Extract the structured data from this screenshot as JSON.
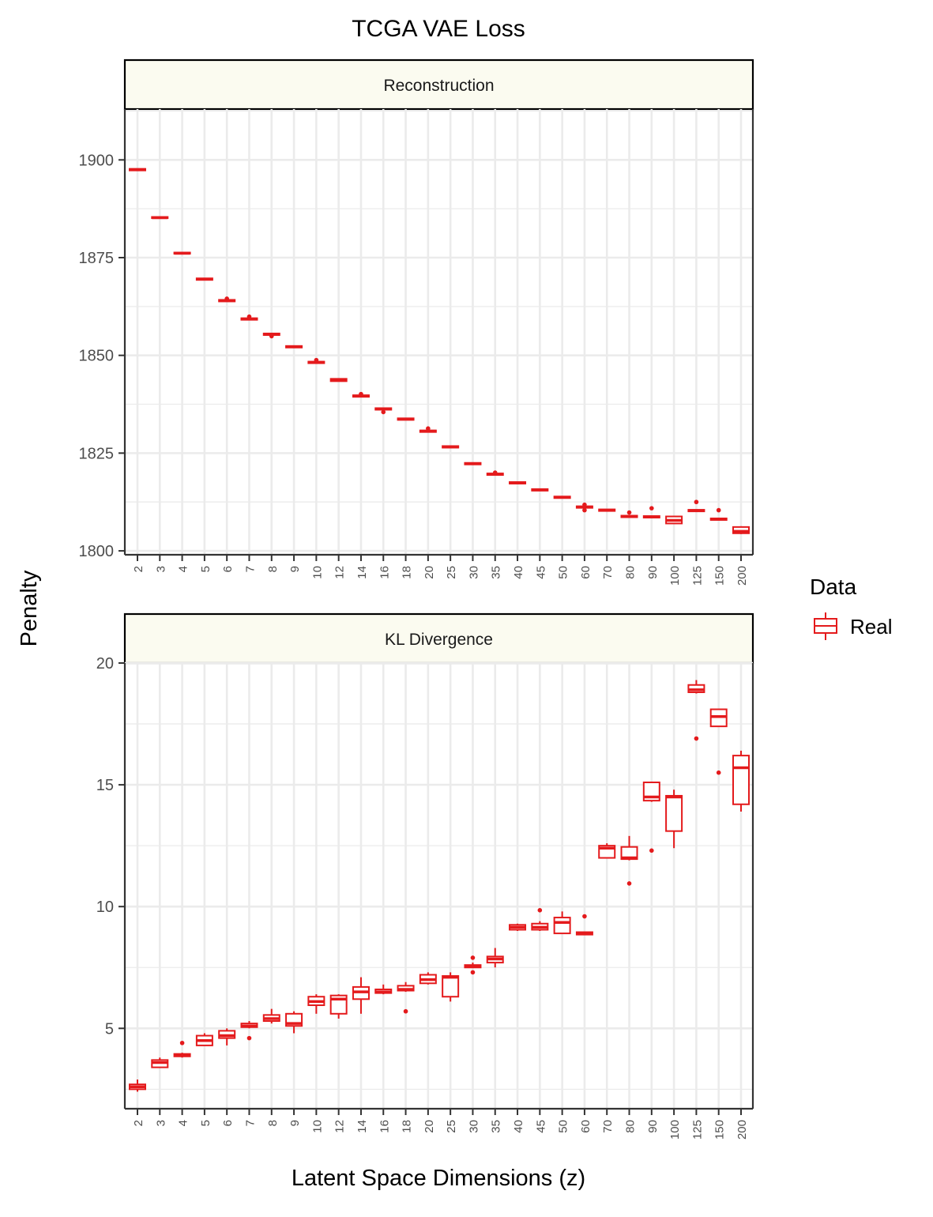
{
  "title": "TCGA VAE Loss",
  "xlabel": "Latent Space Dimensions (z)",
  "ylabel": "Penalty",
  "legend": {
    "title": "Data",
    "entries": [
      "Real"
    ],
    "position": "right"
  },
  "colors": {
    "series": "#e41a1c",
    "strip_fill": "#fbfbf0",
    "grid": "#ebebeb",
    "axis": "#333333"
  },
  "chart_data": [
    {
      "type": "box",
      "panel": "Reconstruction",
      "series_name": "Real",
      "categories": [
        "2",
        "3",
        "4",
        "5",
        "6",
        "7",
        "8",
        "9",
        "10",
        "12",
        "14",
        "16",
        "18",
        "20",
        "25",
        "30",
        "35",
        "40",
        "45",
        "50",
        "60",
        "70",
        "80",
        "90",
        "100",
        "125",
        "150",
        "200"
      ],
      "ylim": [
        1799,
        1913
      ],
      "yticks": [
        1800,
        1825,
        1850,
        1875,
        1900
      ],
      "grid": true,
      "boxes": [
        {
          "x": "2",
          "min": 1897.3,
          "q1": 1897.3,
          "median": 1897.5,
          "q3": 1897.7,
          "max": 1897.7,
          "outliers": []
        },
        {
          "x": "3",
          "min": 1885.1,
          "q1": 1885.1,
          "median": 1885.2,
          "q3": 1885.4,
          "max": 1885.4,
          "outliers": []
        },
        {
          "x": "4",
          "min": 1876.0,
          "q1": 1876.0,
          "median": 1876.1,
          "q3": 1876.3,
          "max": 1876.3,
          "outliers": []
        },
        {
          "x": "5",
          "min": 1869.3,
          "q1": 1869.3,
          "median": 1869.5,
          "q3": 1869.7,
          "max": 1869.7,
          "outliers": []
        },
        {
          "x": "6",
          "min": 1863.8,
          "q1": 1863.8,
          "median": 1864.0,
          "q3": 1864.2,
          "max": 1864.2,
          "outliers": [
            1864.5
          ]
        },
        {
          "x": "7",
          "min": 1859.1,
          "q1": 1859.1,
          "median": 1859.3,
          "q3": 1859.5,
          "max": 1859.5,
          "outliers": [
            1859.9
          ]
        },
        {
          "x": "8",
          "min": 1855.2,
          "q1": 1855.2,
          "median": 1855.4,
          "q3": 1855.6,
          "max": 1855.6,
          "outliers": [
            1854.9
          ]
        },
        {
          "x": "9",
          "min": 1852.0,
          "q1": 1852.0,
          "median": 1852.2,
          "q3": 1852.4,
          "max": 1852.4,
          "outliers": []
        },
        {
          "x": "10",
          "min": 1848.0,
          "q1": 1848.0,
          "median": 1848.2,
          "q3": 1848.4,
          "max": 1848.4,
          "outliers": [
            1848.8
          ]
        },
        {
          "x": "12",
          "min": 1843.4,
          "q1": 1843.4,
          "median": 1843.7,
          "q3": 1844.0,
          "max": 1844.0,
          "outliers": []
        },
        {
          "x": "14",
          "min": 1839.4,
          "q1": 1839.4,
          "median": 1839.6,
          "q3": 1839.8,
          "max": 1839.8,
          "outliers": [
            1840.1
          ]
        },
        {
          "x": "16",
          "min": 1836.1,
          "q1": 1836.1,
          "median": 1836.3,
          "q3": 1836.5,
          "max": 1836.5,
          "outliers": [
            1835.5
          ]
        },
        {
          "x": "18",
          "min": 1833.5,
          "q1": 1833.5,
          "median": 1833.7,
          "q3": 1833.9,
          "max": 1833.9,
          "outliers": []
        },
        {
          "x": "20",
          "min": 1830.4,
          "q1": 1830.4,
          "median": 1830.6,
          "q3": 1830.8,
          "max": 1830.8,
          "outliers": [
            1831.3
          ]
        },
        {
          "x": "25",
          "min": 1826.4,
          "q1": 1826.4,
          "median": 1826.6,
          "q3": 1826.8,
          "max": 1826.8,
          "outliers": []
        },
        {
          "x": "30",
          "min": 1822.1,
          "q1": 1822.1,
          "median": 1822.3,
          "q3": 1822.5,
          "max": 1822.5,
          "outliers": []
        },
        {
          "x": "35",
          "min": 1819.4,
          "q1": 1819.4,
          "median": 1819.6,
          "q3": 1819.8,
          "max": 1819.8,
          "outliers": [
            1820.0
          ]
        },
        {
          "x": "40",
          "min": 1817.2,
          "q1": 1817.2,
          "median": 1817.4,
          "q3": 1817.6,
          "max": 1817.6,
          "outliers": []
        },
        {
          "x": "45",
          "min": 1815.4,
          "q1": 1815.4,
          "median": 1815.6,
          "q3": 1815.8,
          "max": 1815.8,
          "outliers": []
        },
        {
          "x": "50",
          "min": 1813.5,
          "q1": 1813.5,
          "median": 1813.7,
          "q3": 1813.9,
          "max": 1813.9,
          "outliers": []
        },
        {
          "x": "60",
          "min": 1811.0,
          "q1": 1811.0,
          "median": 1811.2,
          "q3": 1811.4,
          "max": 1811.4,
          "outliers": [
            1810.4,
            1811.8
          ]
        },
        {
          "x": "70",
          "min": 1810.2,
          "q1": 1810.2,
          "median": 1810.4,
          "q3": 1810.6,
          "max": 1810.6,
          "outliers": []
        },
        {
          "x": "80",
          "min": 1808.6,
          "q1": 1808.6,
          "median": 1808.8,
          "q3": 1809.0,
          "max": 1809.0,
          "outliers": [
            1809.8
          ]
        },
        {
          "x": "90",
          "min": 1808.5,
          "q1": 1808.5,
          "median": 1808.7,
          "q3": 1808.9,
          "max": 1808.9,
          "outliers": [
            1810.9
          ]
        },
        {
          "x": "100",
          "min": 1806.9,
          "q1": 1807.0,
          "median": 1807.8,
          "q3": 1808.8,
          "max": 1808.9,
          "outliers": []
        },
        {
          "x": "125",
          "min": 1810.1,
          "q1": 1810.1,
          "median": 1810.3,
          "q3": 1810.5,
          "max": 1810.5,
          "outliers": [
            1812.5
          ]
        },
        {
          "x": "150",
          "min": 1807.9,
          "q1": 1807.9,
          "median": 1808.1,
          "q3": 1808.3,
          "max": 1808.3,
          "outliers": [
            1810.4
          ]
        },
        {
          "x": "200",
          "min": 1804.3,
          "q1": 1804.5,
          "median": 1805.0,
          "q3": 1806.1,
          "max": 1806.3,
          "outliers": []
        }
      ]
    },
    {
      "type": "box",
      "panel": "KL Divergence",
      "series_name": "Real",
      "categories": [
        "2",
        "3",
        "4",
        "5",
        "6",
        "7",
        "8",
        "9",
        "10",
        "12",
        "14",
        "16",
        "18",
        "20",
        "25",
        "30",
        "35",
        "40",
        "45",
        "50",
        "60",
        "70",
        "80",
        "90",
        "100",
        "125",
        "150",
        "200"
      ],
      "ylim": [
        1.7,
        20.0
      ],
      "yticks": [
        5,
        10,
        15,
        20
      ],
      "grid": true,
      "boxes": [
        {
          "x": "2",
          "min": 2.4,
          "q1": 2.5,
          "median": 2.6,
          "q3": 2.7,
          "max": 2.9,
          "outliers": []
        },
        {
          "x": "3",
          "min": 3.4,
          "q1": 3.4,
          "median": 3.6,
          "q3": 3.7,
          "max": 3.8,
          "outliers": []
        },
        {
          "x": "4",
          "min": 3.8,
          "q1": 3.85,
          "median": 3.9,
          "q3": 3.95,
          "max": 4.0,
          "outliers": [
            4.4
          ]
        },
        {
          "x": "5",
          "min": 4.3,
          "q1": 4.3,
          "median": 4.5,
          "q3": 4.7,
          "max": 4.8,
          "outliers": []
        },
        {
          "x": "6",
          "min": 4.3,
          "q1": 4.6,
          "median": 4.7,
          "q3": 4.9,
          "max": 5.0,
          "outliers": []
        },
        {
          "x": "7",
          "min": 5.0,
          "q1": 5.05,
          "median": 5.1,
          "q3": 5.2,
          "max": 5.3,
          "outliers": [
            4.6
          ]
        },
        {
          "x": "8",
          "min": 5.2,
          "q1": 5.3,
          "median": 5.4,
          "q3": 5.55,
          "max": 5.8,
          "outliers": []
        },
        {
          "x": "9",
          "min": 4.8,
          "q1": 5.1,
          "median": 5.2,
          "q3": 5.6,
          "max": 5.7,
          "outliers": []
        },
        {
          "x": "10",
          "min": 5.6,
          "q1": 5.95,
          "median": 6.1,
          "q3": 6.3,
          "max": 6.4,
          "outliers": []
        },
        {
          "x": "12",
          "min": 5.4,
          "q1": 5.6,
          "median": 6.2,
          "q3": 6.35,
          "max": 6.4,
          "outliers": []
        },
        {
          "x": "14",
          "min": 5.6,
          "q1": 6.2,
          "median": 6.5,
          "q3": 6.7,
          "max": 7.1,
          "outliers": []
        },
        {
          "x": "16",
          "min": 6.4,
          "q1": 6.45,
          "median": 6.5,
          "q3": 6.6,
          "max": 6.8,
          "outliers": []
        },
        {
          "x": "18",
          "min": 6.5,
          "q1": 6.55,
          "median": 6.6,
          "q3": 6.75,
          "max": 6.9,
          "outliers": [
            5.7
          ]
        },
        {
          "x": "20",
          "min": 6.8,
          "q1": 6.85,
          "median": 7.0,
          "q3": 7.2,
          "max": 7.3,
          "outliers": []
        },
        {
          "x": "25",
          "min": 6.1,
          "q1": 6.3,
          "median": 7.1,
          "q3": 7.15,
          "max": 7.3,
          "outliers": []
        },
        {
          "x": "30",
          "min": 7.5,
          "q1": 7.5,
          "median": 7.55,
          "q3": 7.6,
          "max": 7.7,
          "outliers": [
            7.3,
            7.9
          ]
        },
        {
          "x": "35",
          "min": 7.5,
          "q1": 7.7,
          "median": 7.85,
          "q3": 7.95,
          "max": 8.3,
          "outliers": []
        },
        {
          "x": "40",
          "min": 9.0,
          "q1": 9.05,
          "median": 9.15,
          "q3": 9.25,
          "max": 9.3,
          "outliers": []
        },
        {
          "x": "45",
          "min": 9.0,
          "q1": 9.05,
          "median": 9.15,
          "q3": 9.3,
          "max": 9.4,
          "outliers": [
            9.85
          ]
        },
        {
          "x": "50",
          "min": 8.9,
          "q1": 8.9,
          "median": 9.35,
          "q3": 9.55,
          "max": 9.8,
          "outliers": []
        },
        {
          "x": "60",
          "min": 8.85,
          "q1": 8.85,
          "median": 8.9,
          "q3": 8.95,
          "max": 8.95,
          "outliers": [
            9.6
          ]
        },
        {
          "x": "70",
          "min": 12.0,
          "q1": 12.0,
          "median": 12.4,
          "q3": 12.5,
          "max": 12.6,
          "outliers": []
        },
        {
          "x": "80",
          "min": 11.9,
          "q1": 11.95,
          "median": 12.0,
          "q3": 12.45,
          "max": 12.9,
          "outliers": [
            10.95
          ]
        },
        {
          "x": "90",
          "min": 14.3,
          "q1": 14.35,
          "median": 14.5,
          "q3": 15.1,
          "max": 15.1,
          "outliers": [
            12.3
          ]
        },
        {
          "x": "100",
          "min": 12.4,
          "q1": 13.1,
          "median": 14.5,
          "q3": 14.55,
          "max": 14.8,
          "outliers": []
        },
        {
          "x": "125",
          "min": 18.75,
          "q1": 18.8,
          "median": 18.9,
          "q3": 19.1,
          "max": 19.3,
          "outliers": [
            16.9
          ]
        },
        {
          "x": "150",
          "min": 17.4,
          "q1": 17.4,
          "median": 17.8,
          "q3": 18.1,
          "max": 18.1,
          "outliers": [
            15.5
          ]
        },
        {
          "x": "200",
          "min": 13.9,
          "q1": 14.2,
          "median": 15.7,
          "q3": 16.2,
          "max": 16.4,
          "outliers": []
        }
      ]
    }
  ]
}
